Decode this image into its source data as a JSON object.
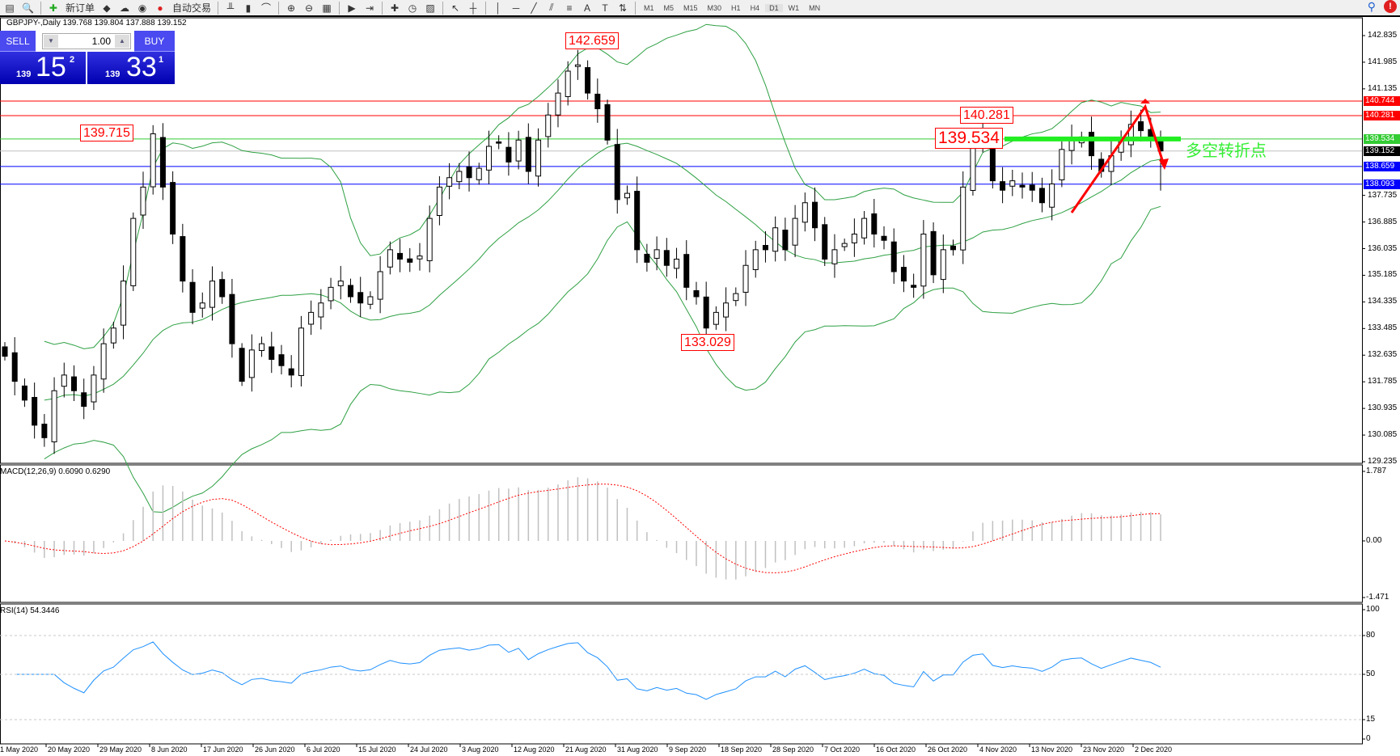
{
  "toolbar": {
    "new_order": "新订单",
    "auto_trading": "自动交易",
    "timeframes": [
      "M1",
      "M5",
      "M15",
      "M30",
      "H1",
      "H4",
      "D1",
      "W1",
      "MN"
    ],
    "active_timeframe": "D1",
    "icons": [
      "profiles-icon",
      "zoom-window-icon",
      "new-order-icon",
      "experts-icon",
      "market-icon",
      "signal-icon",
      "auto-trading-icon",
      "bar-chart-icon",
      "candle-chart-icon",
      "line-chart-icon",
      "zoom-in-icon",
      "zoom-out-icon",
      "tile-icon",
      "autoscroll-icon",
      "chart-shift-icon",
      "indicators-icon",
      "periods-icon",
      "templates-icon",
      "cursor-icon",
      "crosshair-icon",
      "vertical-line-icon",
      "horizontal-line-icon",
      "trendline-icon",
      "equidistant-channel-icon",
      "fibonacci-icon",
      "text-icon",
      "text-label-icon",
      "arrows-icon"
    ]
  },
  "chart": {
    "title": "GBPJPY-,Daily  139.768 139.804 137.888 139.152",
    "symbol": "GBPJPY-",
    "period": "Daily",
    "ohlc": [
      139.768,
      139.804,
      137.888,
      139.152
    ]
  },
  "trade_panel": {
    "sell_label": "SELL",
    "buy_label": "BUY",
    "lot": "1.00",
    "sell_price": {
      "small": "139",
      "big": "15",
      "pip": "2"
    },
    "buy_price": {
      "small": "139",
      "big": "33",
      "pip": "1"
    },
    "color": "#2020d0"
  },
  "price_axis": {
    "max": 142.835,
    "min": 129.235,
    "ticks": [
      "142.835",
      "141.985",
      "141.135",
      "137.735",
      "136.885",
      "136.035",
      "135.185",
      "134.335",
      "133.485",
      "132.635",
      "131.785",
      "130.935",
      "130.085",
      "129.235"
    ]
  },
  "levels": [
    {
      "value": "140.744",
      "color": "#ff0000"
    },
    {
      "value": "140.281",
      "color": "#ff0000"
    },
    {
      "value": "139.534",
      "color": "#33cc33"
    },
    {
      "value": "139.152",
      "color": "#000000",
      "line": "#c0c0c0"
    },
    {
      "value": "138.659",
      "color": "#0000ff"
    },
    {
      "value": "138.093",
      "color": "#0000ff"
    }
  ],
  "annotations": {
    "high_label": "142.659",
    "june_high_label": "139.715",
    "low_label": "133.029",
    "nov_high_label": "140.281",
    "pivot_label": "139.534",
    "pivot_text": "多空转折点",
    "pivot_color": "#33ee33",
    "arrow_color": "#ff0000"
  },
  "closes": [
    132.6,
    131.8,
    131.2,
    130.4,
    130.0,
    131.5,
    132.0,
    131.5,
    131.0,
    132.0,
    133.0,
    133.5,
    135.0,
    137.0,
    138.0,
    139.7,
    138.0,
    136.5,
    135.0,
    134.0,
    134.3,
    135.0,
    134.5,
    133.0,
    131.8,
    132.8,
    133.0,
    132.5,
    132.3,
    132.0,
    133.5,
    134.0,
    134.3,
    134.8,
    135.0,
    134.5,
    134.3,
    134.5,
    135.3,
    136.0,
    135.7,
    135.6,
    135.8,
    137.0,
    138.0,
    138.3,
    138.5,
    138.3,
    138.6,
    139.3,
    139.4,
    138.8,
    139.5,
    138.5,
    139.5,
    140.3,
    141.0,
    141.7,
    141.9,
    141.0,
    140.5,
    139.5,
    137.6,
    137.8,
    136.0,
    135.6,
    136.0,
    135.5,
    135.7,
    134.8,
    134.5,
    133.5,
    134.0,
    134.3,
    134.6,
    135.5,
    136.0,
    136.0,
    136.7,
    136.0,
    137.0,
    137.5,
    136.7,
    135.7,
    136.0,
    136.2,
    136.5,
    137.0,
    136.5,
    136.3,
    135.3,
    135.0,
    134.8,
    136.5,
    135.2,
    136.0,
    136.0,
    138.0,
    139.4,
    139.7,
    138.2,
    137.9,
    138.2,
    138.0,
    137.9,
    137.5,
    138.1,
    139.2,
    139.5,
    139.6,
    139.0,
    138.5,
    139.0,
    139.5,
    140.0,
    139.8,
    139.6,
    139.152
  ],
  "macd": {
    "title": "MACD(12,26,9) 0.6090 0.6290",
    "max": "1.787",
    "zero": "0.00",
    "min": "-1.471"
  },
  "rsi": {
    "title": "RSI(14) 54.3446",
    "levels": [
      "100",
      "80",
      "50",
      "15",
      "0"
    ],
    "color": "#1e90ff"
  },
  "date_axis": [
    "1 May 2020",
    "20 May 2020",
    "29 May 2020",
    "8 Jun 2020",
    "17 Jun 2020",
    "26 Jun 2020",
    "6 Jul 2020",
    "15 Jul 2020",
    "24 Jul 2020",
    "3 Aug 2020",
    "12 Aug 2020",
    "21 Aug 2020",
    "31 Aug 2020",
    "9 Sep 2020",
    "18 Sep 2020",
    "28 Sep 2020",
    "7 Oct 2020",
    "16 Oct 2020",
    "26 Oct 2020",
    "4 Nov 2020",
    "13 Nov 2020",
    "23 Nov 2020",
    "2 Dec 2020"
  ]
}
